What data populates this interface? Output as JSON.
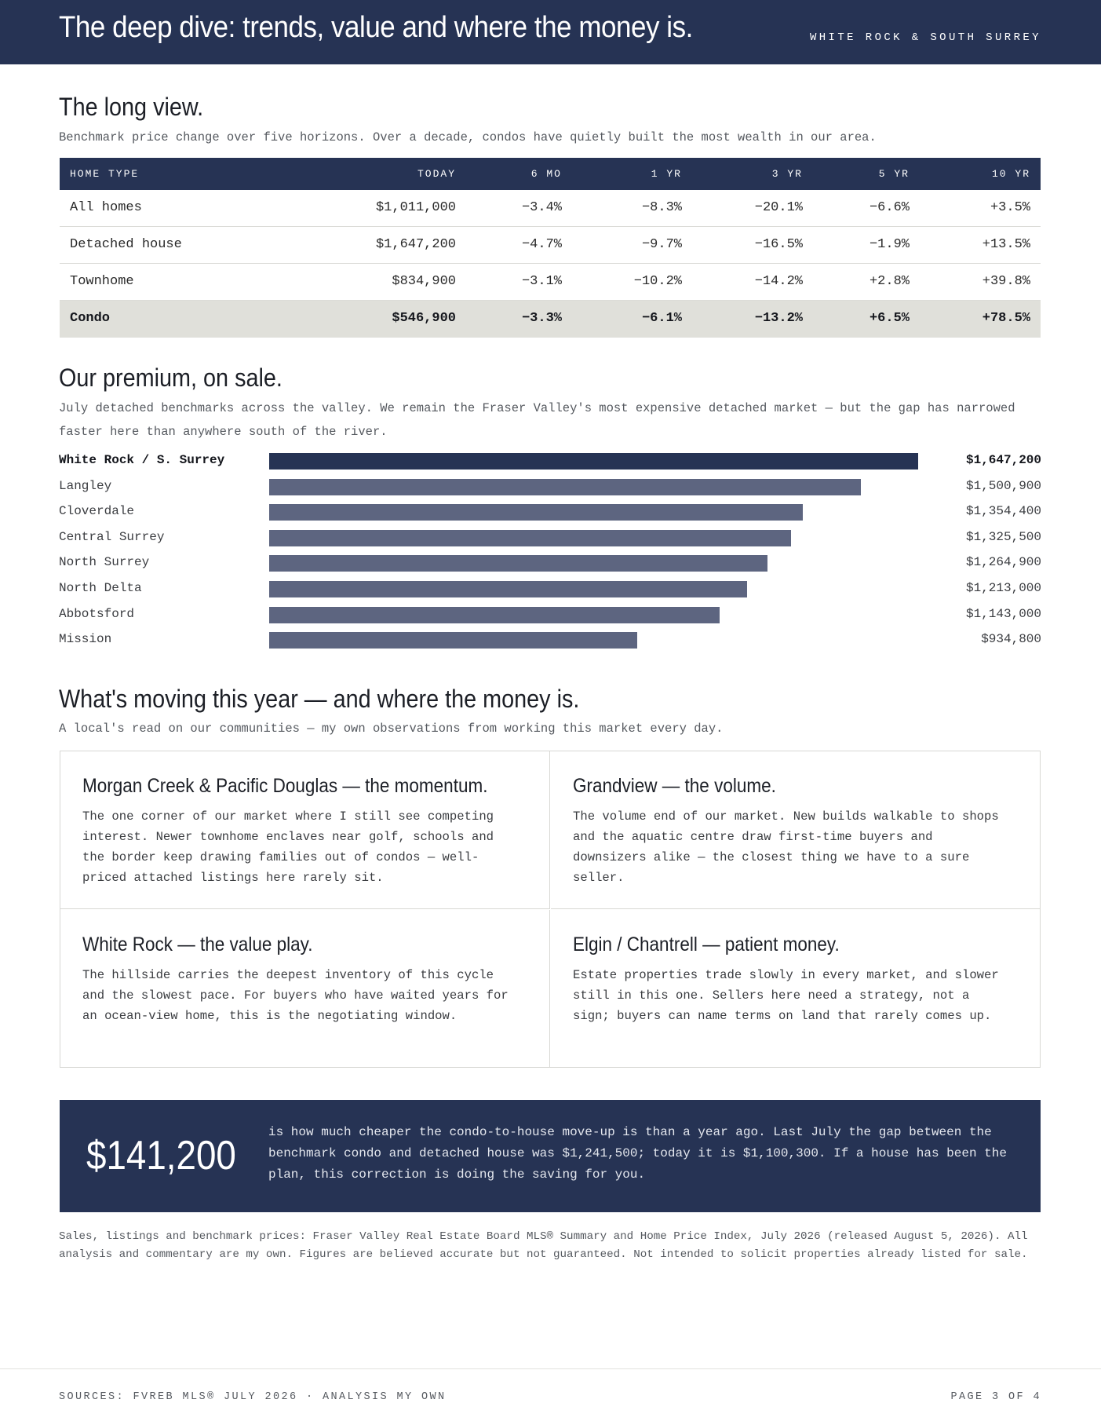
{
  "header": {
    "title": "The deep dive: trends, value and where the money is.",
    "region": "WHITE ROCK & SOUTH SURREY"
  },
  "long_view": {
    "heading": "The long view.",
    "subtitle": "Benchmark price change over five horizons. Over a decade, condos have quietly built the most wealth in our area.",
    "columns": [
      "HOME TYPE",
      "TODAY",
      "6 MO",
      "1 YR",
      "3 YR",
      "5 YR",
      "10 YR"
    ],
    "rows": [
      {
        "cells": [
          "All homes",
          "$1,011,000",
          "−3.4%",
          "−8.3%",
          "−20.1%",
          "−6.6%",
          "+3.5%"
        ],
        "highlight": false
      },
      {
        "cells": [
          "Detached house",
          "$1,647,200",
          "−4.7%",
          "−9.7%",
          "−16.5%",
          "−1.9%",
          "+13.5%"
        ],
        "highlight": false
      },
      {
        "cells": [
          "Townhome",
          "$834,900",
          "−3.1%",
          "−10.2%",
          "−14.2%",
          "+2.8%",
          "+39.8%"
        ],
        "highlight": false
      },
      {
        "cells": [
          "Condo",
          "$546,900",
          "−3.3%",
          "−6.1%",
          "−13.2%",
          "+6.5%",
          "+78.5%"
        ],
        "highlight": true
      }
    ]
  },
  "premium": {
    "heading": "Our premium, on sale.",
    "subtitle": "July detached benchmarks across the valley. We remain the Fraser Valley's most expensive detached market — but the gap has narrowed faster here than anywhere south of the river."
  },
  "chart_data": {
    "type": "bar",
    "orientation": "horizontal",
    "categories": [
      "White Rock / S. Surrey",
      "Langley",
      "Cloverdale",
      "Central Surrey",
      "North Surrey",
      "North Delta",
      "Abbotsford",
      "Mission"
    ],
    "values": [
      1647200,
      1500900,
      1354400,
      1325500,
      1264900,
      1213000,
      1143000,
      934800
    ],
    "value_labels": [
      "$1,647,200",
      "$1,500,900",
      "$1,354,400",
      "$1,325,500",
      "$1,264,900",
      "$1,213,000",
      "$1,143,000",
      "$934,800"
    ],
    "highlight_index": 0,
    "colors": {
      "highlight": "#263354",
      "default": "#5d6580"
    }
  },
  "moving": {
    "heading": "What's moving this year — and where the money is.",
    "subtitle": "A local's read on our communities — my own observations from working this market every day.",
    "cards": [
      {
        "title": "Morgan Creek & Pacific Douglas — the momentum.",
        "body": "The one corner of our market where I still see competing interest. Newer townhome enclaves near golf, schools and the border keep drawing families out of condos — well-priced attached listings here rarely sit."
      },
      {
        "title": "Grandview — the volume.",
        "body": "The volume end of our market. New builds walkable to shops and the aquatic centre draw first-time buyers and downsizers alike — the closest thing we have to a sure seller."
      },
      {
        "title": "White Rock — the value play.",
        "body": "The hillside carries the deepest inventory of this cycle and the slowest pace. For buyers who have waited years for an ocean-view home, this is the negotiating window."
      },
      {
        "title": "Elgin / Chantrell — patient money.",
        "body": "Estate properties trade slowly in every market, and slower still in this one. Sellers here need a strategy, not a sign; buyers can name terms on land that rarely comes up."
      }
    ]
  },
  "callout": {
    "figure": "$141,200",
    "text": "is how much cheaper the condo-to-house move-up is than a year ago. Last July the gap between the benchmark condo and detached house was $1,241,500; today it is $1,100,300. If a house has been the plan, this correction is doing the saving for you."
  },
  "note": "Sales, listings and benchmark prices: Fraser Valley Real Estate Board MLS® Summary and Home Price Index, July 2026 (released August 5, 2026). All analysis and commentary are my own. Figures are believed accurate but not guaranteed. Not intended to solicit properties already listed for sale.",
  "footer": {
    "sources": "SOURCES: FVREB MLS® JULY 2026 · ANALYSIS MY OWN",
    "page": "PAGE 3 OF 4"
  },
  "colors": {
    "navy": "#263354",
    "bar": "#5d6580",
    "highlight_row": "#e0e0da"
  }
}
